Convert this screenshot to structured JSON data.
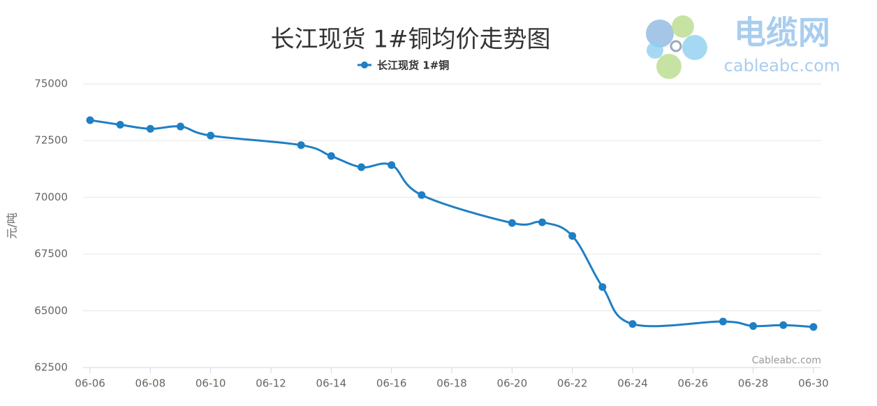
{
  "chart_data": {
    "type": "line",
    "title": "长江现货 1#铜均价走势图",
    "ylabel": "元/吨",
    "x": [
      "06-06",
      "06-07",
      "06-08",
      "06-09",
      "06-10",
      "06-13",
      "06-14",
      "06-15",
      "06-16",
      "06-17",
      "06-20",
      "06-21",
      "06-22",
      "06-23",
      "06-24",
      "06-27",
      "06-28",
      "06-29",
      "06-30"
    ],
    "series": [
      {
        "name": "长江现货 1#铜",
        "color": "#1f7fc4",
        "values": [
          73400,
          73200,
          73020,
          73120,
          72720,
          72300,
          71820,
          71330,
          71420,
          70100,
          68870,
          68900,
          68300,
          66050,
          64420,
          64530,
          64330,
          64370,
          64290
        ]
      }
    ],
    "xlim": [
      "06-06",
      "06-30"
    ],
    "xticks": [
      "06-06",
      "06-08",
      "06-10",
      "06-12",
      "06-14",
      "06-16",
      "06-18",
      "06-20",
      "06-22",
      "06-24",
      "06-26",
      "06-28",
      "06-30"
    ],
    "ylim": [
      62500,
      75000
    ],
    "yticks": [
      62500,
      65000,
      67500,
      70000,
      72500,
      75000
    ],
    "grid": true,
    "credits": "Cableabc.com"
  },
  "logo": {
    "name": "电缆网",
    "site": "cableabc.com"
  }
}
